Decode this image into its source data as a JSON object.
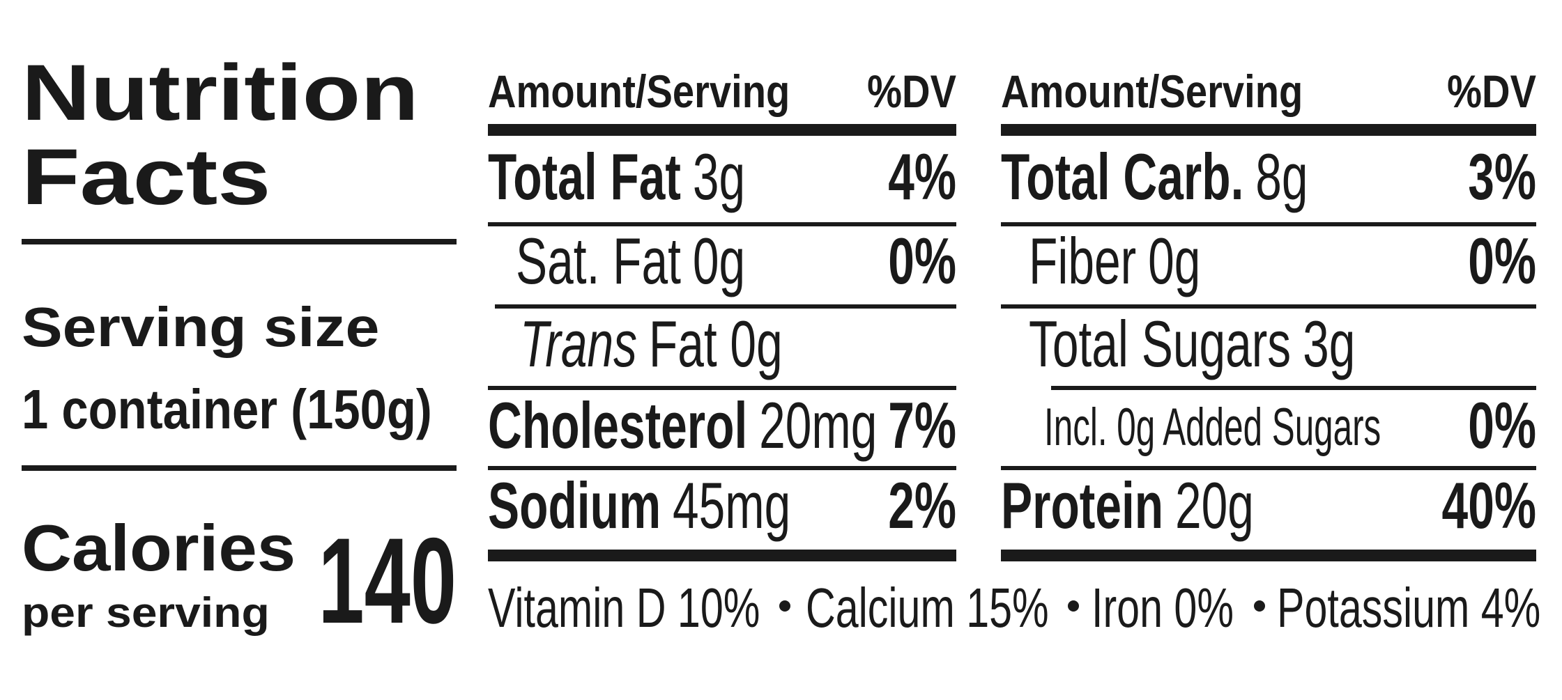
{
  "header": {
    "title_line1": "Nutrition",
    "title_line2": "Facts"
  },
  "serving": {
    "label": "Serving size",
    "value": "1 container (150g)"
  },
  "calories": {
    "label": "Calories",
    "sublabel": "per serving",
    "value": "140"
  },
  "tables": [
    {
      "header": {
        "amount": "Amount/Serving",
        "dv": "%DV"
      },
      "rows": [
        {
          "name": "Total Fat",
          "amount": "3g",
          "dv": "4%"
        },
        {
          "name": "Sat. Fat",
          "amount": "0g",
          "dv": "0%"
        },
        {
          "name": "Trans",
          "amount": "Fat 0g"
        },
        {
          "name": "Cholesterol",
          "amount": "20mg",
          "dv": "7%"
        },
        {
          "name": "Sodium",
          "amount": "45mg",
          "dv": "2%"
        }
      ]
    },
    {
      "header": {
        "amount": "Amount/Serving",
        "dv": "%DV"
      },
      "rows": [
        {
          "name": "Total Carb.",
          "amount": "8g",
          "dv": "3%"
        },
        {
          "name": "Fiber",
          "amount": "0g",
          "dv": "0%"
        },
        {
          "name": "Total Sugars",
          "amount": "3g"
        },
        {
          "amount": "Incl. 0g Added Sugars",
          "dv": "0%"
        },
        {
          "name": "Protein",
          "amount": "20g",
          "dv": "40%"
        }
      ]
    }
  ],
  "footer": {
    "items": [
      "Vitamin D 10%",
      "Calcium 15%",
      "Iron 0%",
      "Potassium 4%"
    ]
  }
}
